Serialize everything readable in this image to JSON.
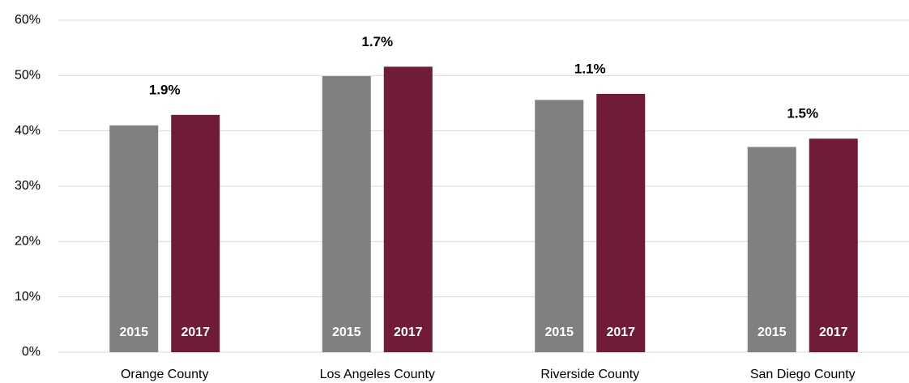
{
  "chart_data": {
    "type": "bar",
    "categories": [
      "Orange County",
      "Los Angeles County",
      "Riverside County",
      "San Diego County"
    ],
    "series": [
      {
        "name": "2015",
        "color": "#808080",
        "values": [
          41.0,
          49.9,
          45.6,
          37.1
        ]
      },
      {
        "name": "2017",
        "color": "#701c36",
        "values": [
          42.9,
          51.6,
          46.7,
          38.6
        ]
      }
    ],
    "annotations": [
      "1.9%",
      "1.7%",
      "1.1%",
      "1.5%"
    ],
    "ylim": [
      0,
      60
    ],
    "yticks": [
      {
        "value": 0,
        "label": "0%"
      },
      {
        "value": 10,
        "label": "10%"
      },
      {
        "value": 20,
        "label": "20%"
      },
      {
        "value": 30,
        "label": "30%"
      },
      {
        "value": 40,
        "label": "40%"
      },
      {
        "value": 50,
        "label": "50%"
      },
      {
        "value": 60,
        "label": "60%"
      }
    ],
    "grid": true
  }
}
